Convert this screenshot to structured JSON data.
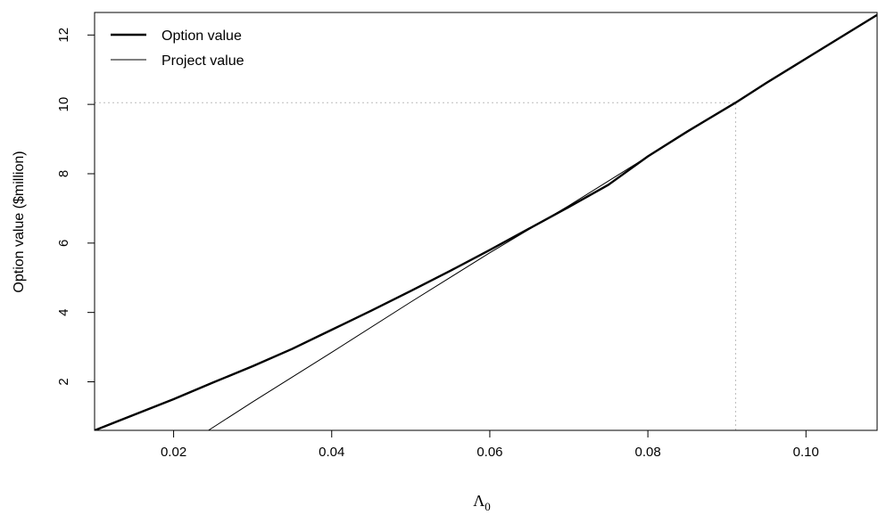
{
  "chart_data": {
    "type": "line",
    "title": "",
    "xlabel": {
      "main": "Λ",
      "sub": "0"
    },
    "ylabel": "Option value ($million)",
    "xlim": [
      0.01,
      0.109
    ],
    "ylim": [
      0.6,
      12.65
    ],
    "x_ticks": [
      0.02,
      0.04,
      0.06,
      0.08,
      0.1
    ],
    "x_tick_labels": [
      "0.02",
      "0.04",
      "0.06",
      "0.08",
      "0.10"
    ],
    "y_ticks": [
      2,
      4,
      6,
      8,
      10,
      12
    ],
    "y_tick_labels": [
      "2",
      "4",
      "6",
      "8",
      "10",
      "12"
    ],
    "grid": false,
    "legend_position": "top-left",
    "series": [
      {
        "name": "Option value",
        "color": "#000000",
        "style": "thick",
        "x": [
          0.01,
          0.015,
          0.02,
          0.025,
          0.03,
          0.035,
          0.04,
          0.045,
          0.05,
          0.055,
          0.06,
          0.065,
          0.07,
          0.075,
          0.08,
          0.085,
          0.0911,
          0.095,
          0.1,
          0.105,
          0.109
        ],
        "y": [
          0.6,
          1.05,
          1.5,
          1.98,
          2.45,
          2.95,
          3.5,
          4.05,
          4.62,
          5.2,
          5.8,
          6.42,
          7.04,
          7.68,
          8.5,
          9.22,
          10.05,
          10.62,
          11.32,
          12.02,
          12.58
        ]
      },
      {
        "name": "Project value",
        "color": "#000000",
        "style": "thin",
        "x": [
          0.0244,
          0.03,
          0.04,
          0.05,
          0.06,
          0.07,
          0.08,
          0.0911,
          0.1,
          0.109
        ],
        "y": [
          0.6,
          1.42,
          2.85,
          4.3,
          5.72,
          7.08,
          8.5,
          10.05,
          11.32,
          12.58
        ]
      }
    ],
    "annotations": [
      {
        "type": "hline",
        "y": 10.05,
        "x_from": 0.01,
        "x_to": 0.0911,
        "style": "dotted",
        "color": "#bbbbbb"
      },
      {
        "type": "vline",
        "x": 0.0911,
        "y_from": 0.6,
        "y_to": 10.05,
        "style": "dotted",
        "color": "#bbbbbb"
      }
    ]
  }
}
